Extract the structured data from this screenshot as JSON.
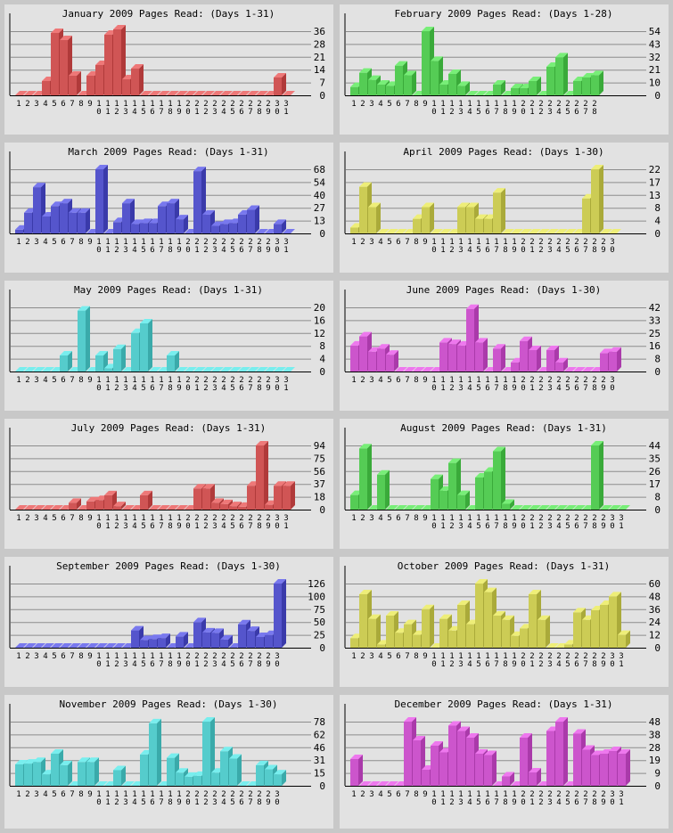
{
  "chart_data": [
    {
      "type": "bar",
      "title": "January 2009 Pages Read: (Days 1-31)",
      "ylim": [
        0,
        36
      ],
      "yticks": [
        "0",
        "7",
        "14",
        "21",
        "28",
        "36"
      ],
      "colors": {
        "front": "#d05555",
        "side": "#b03a3a",
        "top": "#ee7878"
      },
      "categories": [
        "1",
        "2",
        "3",
        "4",
        "5",
        "6",
        "7",
        "8",
        "9",
        "10",
        "11",
        "12",
        "13",
        "14",
        "15",
        "16",
        "17",
        "18",
        "19",
        "20",
        "21",
        "22",
        "23",
        "24",
        "25",
        "26",
        "27",
        "28",
        "29",
        "30",
        "31"
      ],
      "values": [
        0,
        0,
        0,
        8,
        35,
        31,
        11,
        0,
        11,
        17,
        34,
        37,
        9,
        15,
        0,
        0,
        0,
        0,
        0,
        0,
        0,
        0,
        0,
        0,
        0,
        0,
        0,
        0,
        0,
        10,
        0
      ]
    },
    {
      "type": "bar",
      "title": "February 2009 Pages Read: (Days 1-28)",
      "ylim": [
        0,
        54
      ],
      "yticks": [
        "0",
        "10",
        "21",
        "32",
        "43",
        "54"
      ],
      "colors": {
        "front": "#55cc55",
        "side": "#3aaa3a",
        "top": "#78ee78"
      },
      "categories": [
        "1",
        "2",
        "3",
        "4",
        "5",
        "6",
        "7",
        "8",
        "9",
        "10",
        "11",
        "12",
        "13",
        "14",
        "15",
        "16",
        "17",
        "18",
        "19",
        "20",
        "21",
        "22",
        "23",
        "24",
        "25",
        "26",
        "27",
        "28"
      ],
      "values": [
        7,
        19,
        13,
        9,
        8,
        25,
        17,
        0,
        54,
        29,
        9,
        18,
        8,
        0,
        0,
        0,
        9,
        0,
        6,
        6,
        12,
        0,
        24,
        32,
        0,
        12,
        15,
        17
      ]
    },
    {
      "type": "bar",
      "title": "March 2009 Pages Read: (Days 1-31)",
      "ylim": [
        0,
        68
      ],
      "yticks": [
        "0",
        "13",
        "27",
        "40",
        "54",
        "68"
      ],
      "colors": {
        "front": "#5555cc",
        "side": "#3a3aaa",
        "top": "#7878ee"
      },
      "categories": [
        "1",
        "2",
        "3",
        "4",
        "5",
        "6",
        "7",
        "8",
        "9",
        "10",
        "11",
        "12",
        "13",
        "14",
        "15",
        "16",
        "17",
        "18",
        "19",
        "20",
        "21",
        "22",
        "23",
        "24",
        "25",
        "26",
        "27",
        "28",
        "29",
        "30",
        "31"
      ],
      "values": [
        4,
        22,
        49,
        18,
        29,
        32,
        22,
        22,
        0,
        68,
        0,
        12,
        32,
        10,
        11,
        11,
        29,
        32,
        15,
        0,
        66,
        20,
        8,
        10,
        11,
        20,
        25,
        0,
        0,
        10,
        0
      ]
    },
    {
      "type": "bar",
      "title": "April 2009 Pages Read: (Days 1-30)",
      "ylim": [
        0,
        22
      ],
      "yticks": [
        "0",
        "4",
        "8",
        "13",
        "17",
        "22"
      ],
      "colors": {
        "front": "#cccc55",
        "side": "#aaaa3a",
        "top": "#eeee78"
      },
      "categories": [
        "1",
        "2",
        "3",
        "4",
        "5",
        "6",
        "7",
        "8",
        "9",
        "10",
        "11",
        "12",
        "13",
        "14",
        "15",
        "16",
        "17",
        "18",
        "19",
        "20",
        "21",
        "22",
        "23",
        "24",
        "25",
        "26",
        "27",
        "28",
        "29",
        "30"
      ],
      "values": [
        2,
        16,
        9,
        0,
        0,
        0,
        0,
        5,
        9,
        0,
        0,
        0,
        9,
        9,
        5,
        5,
        14,
        0,
        0,
        0,
        0,
        0,
        0,
        0,
        0,
        0,
        12,
        22,
        0,
        0
      ]
    },
    {
      "type": "bar",
      "title": "May 2009 Pages Read: (Days 1-31)",
      "ylim": [
        0,
        20
      ],
      "yticks": [
        "0",
        "4",
        "8",
        "12",
        "16",
        "20"
      ],
      "colors": {
        "front": "#55cccc",
        "side": "#3aaaaa",
        "top": "#78eeee"
      },
      "categories": [
        "1",
        "2",
        "3",
        "4",
        "5",
        "6",
        "7",
        "8",
        "9",
        "10",
        "11",
        "12",
        "13",
        "14",
        "15",
        "16",
        "17",
        "18",
        "19",
        "20",
        "21",
        "22",
        "23",
        "24",
        "25",
        "26",
        "27",
        "28",
        "29",
        "30",
        "31"
      ],
      "values": [
        0,
        0,
        0,
        0,
        0,
        5,
        0,
        19,
        0,
        5,
        1,
        7,
        0,
        12,
        15,
        0,
        0,
        5,
        0,
        0,
        0,
        0,
        0,
        0,
        0,
        0,
        0,
        0,
        0,
        0,
        0
      ]
    },
    {
      "type": "bar",
      "title": "June 2009 Pages Read: (Days 1-30)",
      "ylim": [
        0,
        42
      ],
      "yticks": [
        "0",
        "8",
        "16",
        "25",
        "33",
        "42"
      ],
      "colors": {
        "front": "#cc55cc",
        "side": "#aa3aaa",
        "top": "#ee78ee"
      },
      "categories": [
        "1",
        "2",
        "3",
        "4",
        "5",
        "6",
        "7",
        "8",
        "9",
        "10",
        "11",
        "12",
        "13",
        "14",
        "15",
        "16",
        "17",
        "18",
        "19",
        "20",
        "21",
        "22",
        "23",
        "24",
        "25",
        "26",
        "27",
        "28",
        "29",
        "30"
      ],
      "values": [
        17,
        23,
        13,
        15,
        11,
        0,
        0,
        0,
        0,
        0,
        19,
        18,
        17,
        41,
        19,
        0,
        15,
        0,
        6,
        20,
        14,
        0,
        14,
        6,
        0,
        0,
        0,
        0,
        12,
        13
      ]
    },
    {
      "type": "bar",
      "title": "July 2009 Pages Read: (Days 1-31)",
      "ylim": [
        0,
        94
      ],
      "yticks": [
        "0",
        "18",
        "37",
        "56",
        "75",
        "94"
      ],
      "colors": {
        "front": "#d05555",
        "side": "#b03a3a",
        "top": "#ee7878"
      },
      "categories": [
        "1",
        "2",
        "3",
        "4",
        "5",
        "6",
        "7",
        "8",
        "9",
        "10",
        "11",
        "12",
        "13",
        "14",
        "15",
        "16",
        "17",
        "18",
        "19",
        "20",
        "21",
        "22",
        "23",
        "24",
        "25",
        "26",
        "27",
        "28",
        "29",
        "30",
        "31"
      ],
      "values": [
        0,
        0,
        0,
        0,
        0,
        0,
        10,
        0,
        12,
        14,
        21,
        5,
        0,
        0,
        21,
        0,
        0,
        0,
        0,
        0,
        31,
        31,
        10,
        8,
        5,
        4,
        35,
        94,
        7,
        35,
        35
      ]
    },
    {
      "type": "bar",
      "title": "August 2009 Pages Read: (Days 1-31)",
      "ylim": [
        0,
        44
      ],
      "yticks": [
        "0",
        "8",
        "17",
        "26",
        "35",
        "44"
      ],
      "colors": {
        "front": "#55cc55",
        "side": "#3aaa3a",
        "top": "#78ee78"
      },
      "categories": [
        "1",
        "2",
        "3",
        "4",
        "5",
        "6",
        "7",
        "8",
        "9",
        "10",
        "11",
        "12",
        "13",
        "14",
        "15",
        "16",
        "17",
        "18",
        "19",
        "20",
        "21",
        "22",
        "23",
        "24",
        "25",
        "26",
        "27",
        "28",
        "29",
        "30",
        "31"
      ],
      "values": [
        10,
        42,
        0,
        24,
        0,
        0,
        0,
        0,
        0,
        21,
        13,
        32,
        10,
        0,
        22,
        26,
        40,
        4,
        0,
        0,
        0,
        0,
        0,
        0,
        0,
        0,
        0,
        44,
        0,
        0,
        0
      ]
    },
    {
      "type": "bar",
      "title": "September 2009 Pages Read: (Days 1-30)",
      "ylim": [
        0,
        126
      ],
      "yticks": [
        "0",
        "25",
        "50",
        "75",
        "100",
        "126"
      ],
      "colors": {
        "front": "#5555cc",
        "side": "#3a3aaa",
        "top": "#7878ee"
      },
      "categories": [
        "1",
        "2",
        "3",
        "4",
        "5",
        "6",
        "7",
        "8",
        "9",
        "10",
        "11",
        "12",
        "13",
        "14",
        "15",
        "16",
        "17",
        "18",
        "19",
        "20",
        "21",
        "22",
        "23",
        "24",
        "25",
        "26",
        "27",
        "28",
        "29",
        "30"
      ],
      "values": [
        0,
        0,
        0,
        0,
        0,
        0,
        0,
        0,
        0,
        0,
        0,
        0,
        0,
        34,
        15,
        17,
        19,
        0,
        22,
        0,
        50,
        30,
        29,
        16,
        0,
        46,
        33,
        21,
        25,
        126
      ]
    },
    {
      "type": "bar",
      "title": "October 2009 Pages Read: (Days 1-31)",
      "ylim": [
        0,
        60
      ],
      "yticks": [
        "0",
        "12",
        "24",
        "36",
        "48",
        "60"
      ],
      "colors": {
        "front": "#cccc55",
        "side": "#aaaa3a",
        "top": "#eeee78"
      },
      "categories": [
        "1",
        "2",
        "3",
        "4",
        "5",
        "6",
        "7",
        "8",
        "9",
        "10",
        "11",
        "12",
        "13",
        "14",
        "15",
        "16",
        "17",
        "18",
        "19",
        "20",
        "21",
        "22",
        "23",
        "24",
        "25",
        "26",
        "27",
        "28",
        "29",
        "30",
        "31"
      ],
      "values": [
        9,
        50,
        27,
        3,
        30,
        14,
        22,
        12,
        36,
        0,
        27,
        16,
        40,
        22,
        60,
        52,
        30,
        26,
        11,
        18,
        50,
        26,
        0,
        0,
        3,
        33,
        26,
        35,
        40,
        48,
        12
      ]
    },
    {
      "type": "bar",
      "title": "November 2009 Pages Read: (Days 1-30)",
      "ylim": [
        0,
        78
      ],
      "yticks": [
        "0",
        "15",
        "31",
        "46",
        "62",
        "78"
      ],
      "colors": {
        "front": "#55cccc",
        "side": "#3aaaaa",
        "top": "#78eeee"
      },
      "categories": [
        "1",
        "2",
        "3",
        "4",
        "5",
        "6",
        "7",
        "8",
        "9",
        "10",
        "11",
        "12",
        "13",
        "14",
        "15",
        "16",
        "17",
        "18",
        "19",
        "20",
        "21",
        "22",
        "23",
        "24",
        "25",
        "26",
        "27",
        "28",
        "29",
        "30"
      ],
      "values": [
        26,
        27,
        29,
        14,
        39,
        25,
        0,
        29,
        29,
        0,
        0,
        19,
        0,
        0,
        38,
        76,
        0,
        34,
        16,
        11,
        12,
        78,
        16,
        42,
        33,
        0,
        0,
        25,
        20,
        14
      ]
    },
    {
      "type": "bar",
      "title": "December 2009 Pages Read: (Days 1-31)",
      "ylim": [
        0,
        48
      ],
      "yticks": [
        "0",
        "9",
        "19",
        "28",
        "38",
        "48"
      ],
      "colors": {
        "front": "#cc55cc",
        "side": "#aa3aaa",
        "top": "#ee78ee"
      },
      "categories": [
        "1",
        "2",
        "3",
        "4",
        "5",
        "6",
        "7",
        "8",
        "9",
        "10",
        "11",
        "12",
        "13",
        "14",
        "15",
        "16",
        "17",
        "18",
        "19",
        "20",
        "21",
        "22",
        "23",
        "24",
        "25",
        "26",
        "27",
        "28",
        "29",
        "30",
        "31"
      ],
      "values": [
        20,
        0,
        0,
        0,
        0,
        0,
        48,
        34,
        12,
        30,
        25,
        45,
        41,
        36,
        24,
        23,
        0,
        7,
        0,
        36,
        10,
        0,
        41,
        48,
        0,
        39,
        27,
        23,
        24,
        26,
        24
      ]
    }
  ]
}
